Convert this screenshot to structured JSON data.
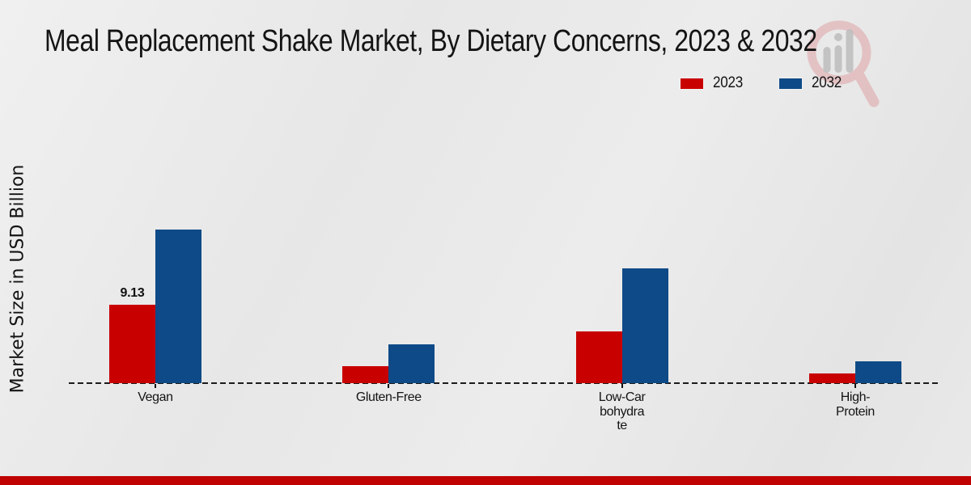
{
  "header": {
    "title": "Meal Replacement Shake Market, By Dietary Concerns, 2023 & 2032"
  },
  "legend": {
    "items": [
      {
        "label": "2023",
        "color": "#c80000"
      },
      {
        "label": "2032",
        "color": "#0e4a87"
      }
    ]
  },
  "y_axis": {
    "label": "Market Size in USD Billion"
  },
  "watermark": {
    "icon": "magnifier-bar-chart-logo",
    "ring_color": "#dfa3a6",
    "bars_color": "#bfbfbf"
  },
  "footer": {
    "band_color": "#c00202"
  },
  "chart_data": {
    "type": "bar",
    "title": "Meal Replacement Shake Market, By Dietary Concerns, 2023 & 2032",
    "ylabel": "Market Size in USD Billion",
    "xlabel": "",
    "categories": [
      "Vegan",
      "Gluten-Free",
      "Low-Carbohydrate",
      "High-Protein"
    ],
    "category_display_lines": [
      [
        "Vegan"
      ],
      [
        "Gluten-Free"
      ],
      [
        "Low-Car",
        "bohydra",
        "te"
      ],
      [
        "High-",
        "Protein"
      ]
    ],
    "series": [
      {
        "name": "2023",
        "color": "#c80000",
        "values": [
          9.13,
          2.0,
          6.0,
          1.1
        ]
      },
      {
        "name": "2032",
        "color": "#0e4a87",
        "values": [
          17.9,
          4.5,
          13.4,
          2.5
        ]
      }
    ],
    "visible_value_labels": [
      {
        "series_index": 0,
        "category_index": 0,
        "text": "9.13"
      }
    ],
    "grid": false,
    "y_ticks_visible": false,
    "baseline_style": "dashed",
    "legend_position": "top-right"
  }
}
